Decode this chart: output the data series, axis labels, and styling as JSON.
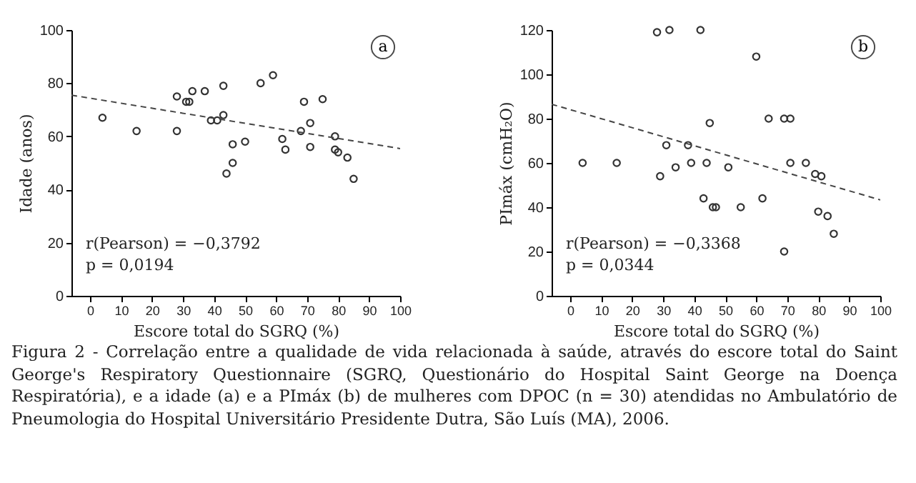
{
  "chart_data": [
    {
      "type": "scatter",
      "xlabel": "Escore total do SGRQ (%)",
      "ylabel": "Idade (anos)",
      "xlim": [
        -6,
        100
      ],
      "ylim": [
        0,
        100
      ],
      "xticks": [
        0,
        10,
        20,
        30,
        40,
        50,
        60,
        70,
        80,
        90,
        100
      ],
      "yticks": [
        0,
        20,
        40,
        60,
        80,
        100
      ],
      "annotations": [
        "a",
        "r(Pearson) = −0,3792",
        "p = 0,0194",
        "Figura 2 - Correlação entre a qualidade de vida relacionada à saúde, através do escore total do Saint George's Respiratory Questionnaire (SGRQ, Questionário do Hospital Saint George na Doença Respiratória), e a idade (a) e a PImáx (b) de mulheres com DPOC (n = 30) atendidas no Ambulatório de Pneumologia do Hospital Universitário Presidente Dutra, São Luís (MA), 2006."
      ],
      "series": [
        {
          "type": "scatter",
          "color": "#333333",
          "marker": "circle",
          "x": [
            4,
            15,
            28,
            28,
            31,
            32,
            33,
            37,
            39,
            41,
            43,
            43,
            44,
            46,
            46,
            50,
            55,
            59,
            62,
            63,
            68,
            69,
            71,
            71,
            75,
            79,
            79,
            80,
            83,
            85
          ],
          "values": [
            67,
            62,
            75,
            62,
            73,
            73,
            77,
            77,
            66,
            66,
            68,
            79,
            46,
            57,
            50,
            58,
            80,
            83,
            59,
            55,
            62,
            73,
            65,
            56,
            74,
            60,
            55,
            54,
            52,
            44
          ]
        },
        {
          "type": "line",
          "color": "#444444",
          "line_style": "dashed",
          "x": [
            -6,
            100
          ],
          "values": [
            75.5,
            55.4
          ]
        }
      ]
    },
    {
      "type": "scatter",
      "xlabel": "Escore total do SGRQ (%)",
      "ylabel": "PImáx (cmH₂O)",
      "xlim": [
        -6,
        100
      ],
      "ylim": [
        0,
        120
      ],
      "xticks": [
        0,
        10,
        20,
        30,
        40,
        50,
        60,
        70,
        80,
        90,
        100
      ],
      "yticks": [
        0,
        20,
        40,
        60,
        80,
        100,
        120
      ],
      "annotations": [
        "b",
        "r(Pearson) = −0,3368",
        "p = 0,0344"
      ],
      "series": [
        {
          "type": "scatter",
          "color": "#333333",
          "marker": "circle",
          "x": [
            4,
            15,
            28,
            32,
            29,
            31,
            34,
            38,
            39,
            42,
            43,
            44,
            45,
            46,
            47,
            51,
            55,
            60,
            62,
            64,
            69,
            69,
            71,
            71,
            76,
            79,
            81,
            80,
            83,
            85
          ],
          "values": [
            60,
            60,
            119,
            120,
            54,
            68,
            58,
            68,
            60,
            120,
            44,
            60,
            78,
            40,
            40,
            58,
            40,
            108,
            44,
            80,
            20,
            80,
            80,
            60,
            60,
            55,
            54,
            38,
            36,
            28
          ]
        },
        {
          "type": "line",
          "color": "#444444",
          "line_style": "dashed",
          "x": [
            -6,
            100
          ],
          "values": [
            86.5,
            43.3
          ]
        }
      ]
    }
  ]
}
